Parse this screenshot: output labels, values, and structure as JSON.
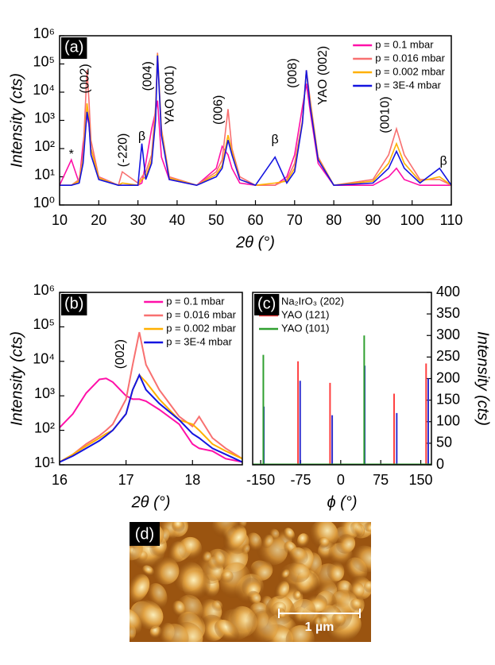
{
  "chart_data": [
    {
      "type": "line",
      "panel_label": "(a)",
      "x_label": "2θ (°)",
      "y_label": "Intensity (cts)",
      "yscale": "log",
      "xlim": [
        10,
        110
      ],
      "xticks": [
        10,
        20,
        30,
        40,
        50,
        60,
        70,
        80,
        90,
        100,
        110
      ],
      "ylim": [
        1,
        1000000
      ],
      "yticks": [
        {
          "value": 1,
          "label": "10⁰"
        },
        {
          "value": 10,
          "label": "10¹"
        },
        {
          "value": 100,
          "label": "10²"
        },
        {
          "value": 1000,
          "label": "10³"
        },
        {
          "value": 10000,
          "label": "10⁴"
        },
        {
          "value": 100000,
          "label": "10⁵"
        },
        {
          "value": 1000000,
          "label": "10⁶"
        }
      ],
      "legend": "upper right",
      "x": [
        10,
        13,
        15,
        16,
        17,
        17.5,
        18,
        20,
        25,
        26,
        30,
        31,
        32,
        33.5,
        34.5,
        35,
        36,
        38,
        45,
        50,
        51.5,
        53,
        54,
        56,
        60,
        65,
        68,
        70,
        72,
        73,
        74,
        76,
        80,
        90,
        94,
        96,
        98,
        102,
        107,
        110
      ],
      "series": [
        {
          "name": "p = 0.1 mbar",
          "color": "#ff10a8",
          "values": [
            5,
            40,
            6,
            150,
            1500,
            700,
            100,
            10,
            5,
            5,
            5,
            6,
            30,
            500,
            2000,
            5000,
            50,
            8,
            5,
            20,
            120,
            60,
            20,
            6,
            5,
            5,
            10,
            60,
            3000,
            20000,
            2000,
            30,
            5,
            5,
            10,
            20,
            8,
            5,
            5,
            5
          ]
        },
        {
          "name": "p = 0.016 mbar",
          "color": "#f87070",
          "values": [
            5,
            5,
            8,
            60,
            60000,
            5000,
            200,
            10,
            5,
            15,
            6,
            10,
            15,
            60,
            3000,
            250000,
            500,
            10,
            5,
            15,
            40,
            2500,
            100,
            10,
            5,
            5,
            8,
            30,
            1000,
            60000,
            5000,
            50,
            5,
            8,
            60,
            500,
            60,
            8,
            8,
            5
          ]
        },
        {
          "name": "p = 0.002 mbar",
          "color": "#ffb000",
          "values": [
            5,
            5,
            7,
            40,
            4000,
            1000,
            100,
            9,
            5,
            6,
            5,
            8,
            10,
            40,
            1500,
            220000,
            400,
            9,
            5,
            12,
            25,
            300,
            80,
            8,
            5,
            6,
            7,
            20,
            900,
            55000,
            4000,
            45,
            5,
            7,
            30,
            150,
            30,
            7,
            10,
            5
          ]
        },
        {
          "name": "p = 3E-4 mbar",
          "color": "#1414e0",
          "values": [
            5,
            5,
            6,
            30,
            2000,
            800,
            60,
            8,
            5,
            5,
            5,
            150,
            8,
            30,
            1000,
            200000,
            300,
            8,
            5,
            10,
            20,
            200,
            60,
            8,
            5,
            50,
            6,
            15,
            800,
            60000,
            3000,
            40,
            5,
            6,
            20,
            80,
            20,
            6,
            20,
            5
          ]
        }
      ],
      "annotations": [
        {
          "text": "*",
          "x": 13,
          "y": 60,
          "vertical": false
        },
        {
          "text": "(002)",
          "x": 16.6,
          "y": 9000,
          "vertical": true
        },
        {
          "text": "(-220)",
          "x": 26.3,
          "y": 22,
          "vertical": true
        },
        {
          "text": "β",
          "x": 31,
          "y": 260,
          "vertical": false
        },
        {
          "text": "(004)",
          "x": 32.6,
          "y": 11000,
          "vertical": true
        },
        {
          "text": "YAO (001)",
          "x": 38.3,
          "y": 700,
          "vertical": true
        },
        {
          "text": "(006)",
          "x": 50.6,
          "y": 700,
          "vertical": true
        },
        {
          "text": "β",
          "x": 65,
          "y": 200,
          "vertical": false
        },
        {
          "text": "(008)",
          "x": 69.6,
          "y": 14000,
          "vertical": true
        },
        {
          "text": "YAO (002)",
          "x": 77.3,
          "y": 3500,
          "vertical": true
        },
        {
          "text": "(0010)",
          "x": 93.2,
          "y": 350,
          "vertical": true
        },
        {
          "text": "β",
          "x": 108,
          "y": 35,
          "vertical": false
        }
      ]
    },
    {
      "type": "line",
      "panel_label": "(b)",
      "x_label": "2θ (°)",
      "y_label": "Intensity (cts)",
      "yscale": "log",
      "xlim": [
        16,
        18.75
      ],
      "xticks": [
        16,
        17,
        18
      ],
      "ylim": [
        10,
        1000000
      ],
      "yticks": [
        {
          "value": 10,
          "label": "10¹"
        },
        {
          "value": 100,
          "label": "10²"
        },
        {
          "value": 1000,
          "label": "10³"
        },
        {
          "value": 10000,
          "label": "10⁴"
        },
        {
          "value": 100000,
          "label": "10⁵"
        },
        {
          "value": 1000000,
          "label": "10⁶"
        }
      ],
      "legend": "upper right",
      "x": [
        16,
        16.2,
        16.4,
        16.6,
        16.7,
        16.8,
        17,
        17.1,
        17.2,
        17.3,
        17.5,
        17.8,
        18,
        18.1,
        18.3,
        18.5,
        18.75
      ],
      "series": [
        {
          "name": "p = 0.1 mbar",
          "color": "#ff10a8",
          "values": [
            120,
            300,
            1200,
            3000,
            3200,
            2500,
            1000,
            800,
            800,
            700,
            400,
            150,
            40,
            30,
            25,
            15,
            12
          ]
        },
        {
          "name": "p = 0.016 mbar",
          "color": "#f87070",
          "values": [
            12,
            20,
            40,
            70,
            100,
            150,
            800,
            8000,
            70000,
            8000,
            1500,
            250,
            130,
            250,
            60,
            30,
            15
          ]
        },
        {
          "name": "p = 0.002 mbar",
          "color": "#ffb000",
          "values": [
            12,
            20,
            35,
            60,
            80,
            100,
            300,
            1500,
            4000,
            2500,
            800,
            200,
            150,
            100,
            40,
            25,
            15
          ]
        },
        {
          "name": "p = 3E-4 mbar",
          "color": "#1414e0",
          "values": [
            12,
            18,
            30,
            50,
            70,
            100,
            300,
            1500,
            4000,
            1500,
            600,
            200,
            80,
            60,
            30,
            20,
            12
          ]
        }
      ],
      "annotations": [
        {
          "text": "(002)",
          "x": 16.92,
          "y": 6000,
          "vertical": true
        }
      ]
    },
    {
      "type": "spike",
      "panel_label": "(c)",
      "x_label": "ϕ (°)",
      "y_label": "Intensity (cts)",
      "y_axis_side": "right",
      "xlim": [
        -165,
        170
      ],
      "xticks": [
        -150,
        -75,
        0,
        75,
        150
      ],
      "ylim": [
        0,
        400
      ],
      "yticks": [
        0,
        50,
        100,
        150,
        200,
        250,
        300,
        350,
        400
      ],
      "legend": "upper left",
      "series": [
        {
          "name": "Na₂IrO₃ (202)",
          "color": "#3030d0",
          "x": [
            -144,
            -76,
            -16,
            45,
            105,
            164
          ],
          "values": [
            135,
            195,
            115,
            230,
            120,
            200
          ]
        },
        {
          "name": "YAO (121)",
          "color": "#ff4040",
          "x": [
            -80,
            -20,
            100,
            160
          ],
          "values": [
            240,
            190,
            165,
            235
          ]
        },
        {
          "name": "YAO (101)",
          "color": "#30a030",
          "x": [
            -145,
            44
          ],
          "values": [
            255,
            300
          ]
        }
      ]
    }
  ],
  "image_panel": {
    "label": "(d)",
    "scale_bar": "1 µm"
  }
}
